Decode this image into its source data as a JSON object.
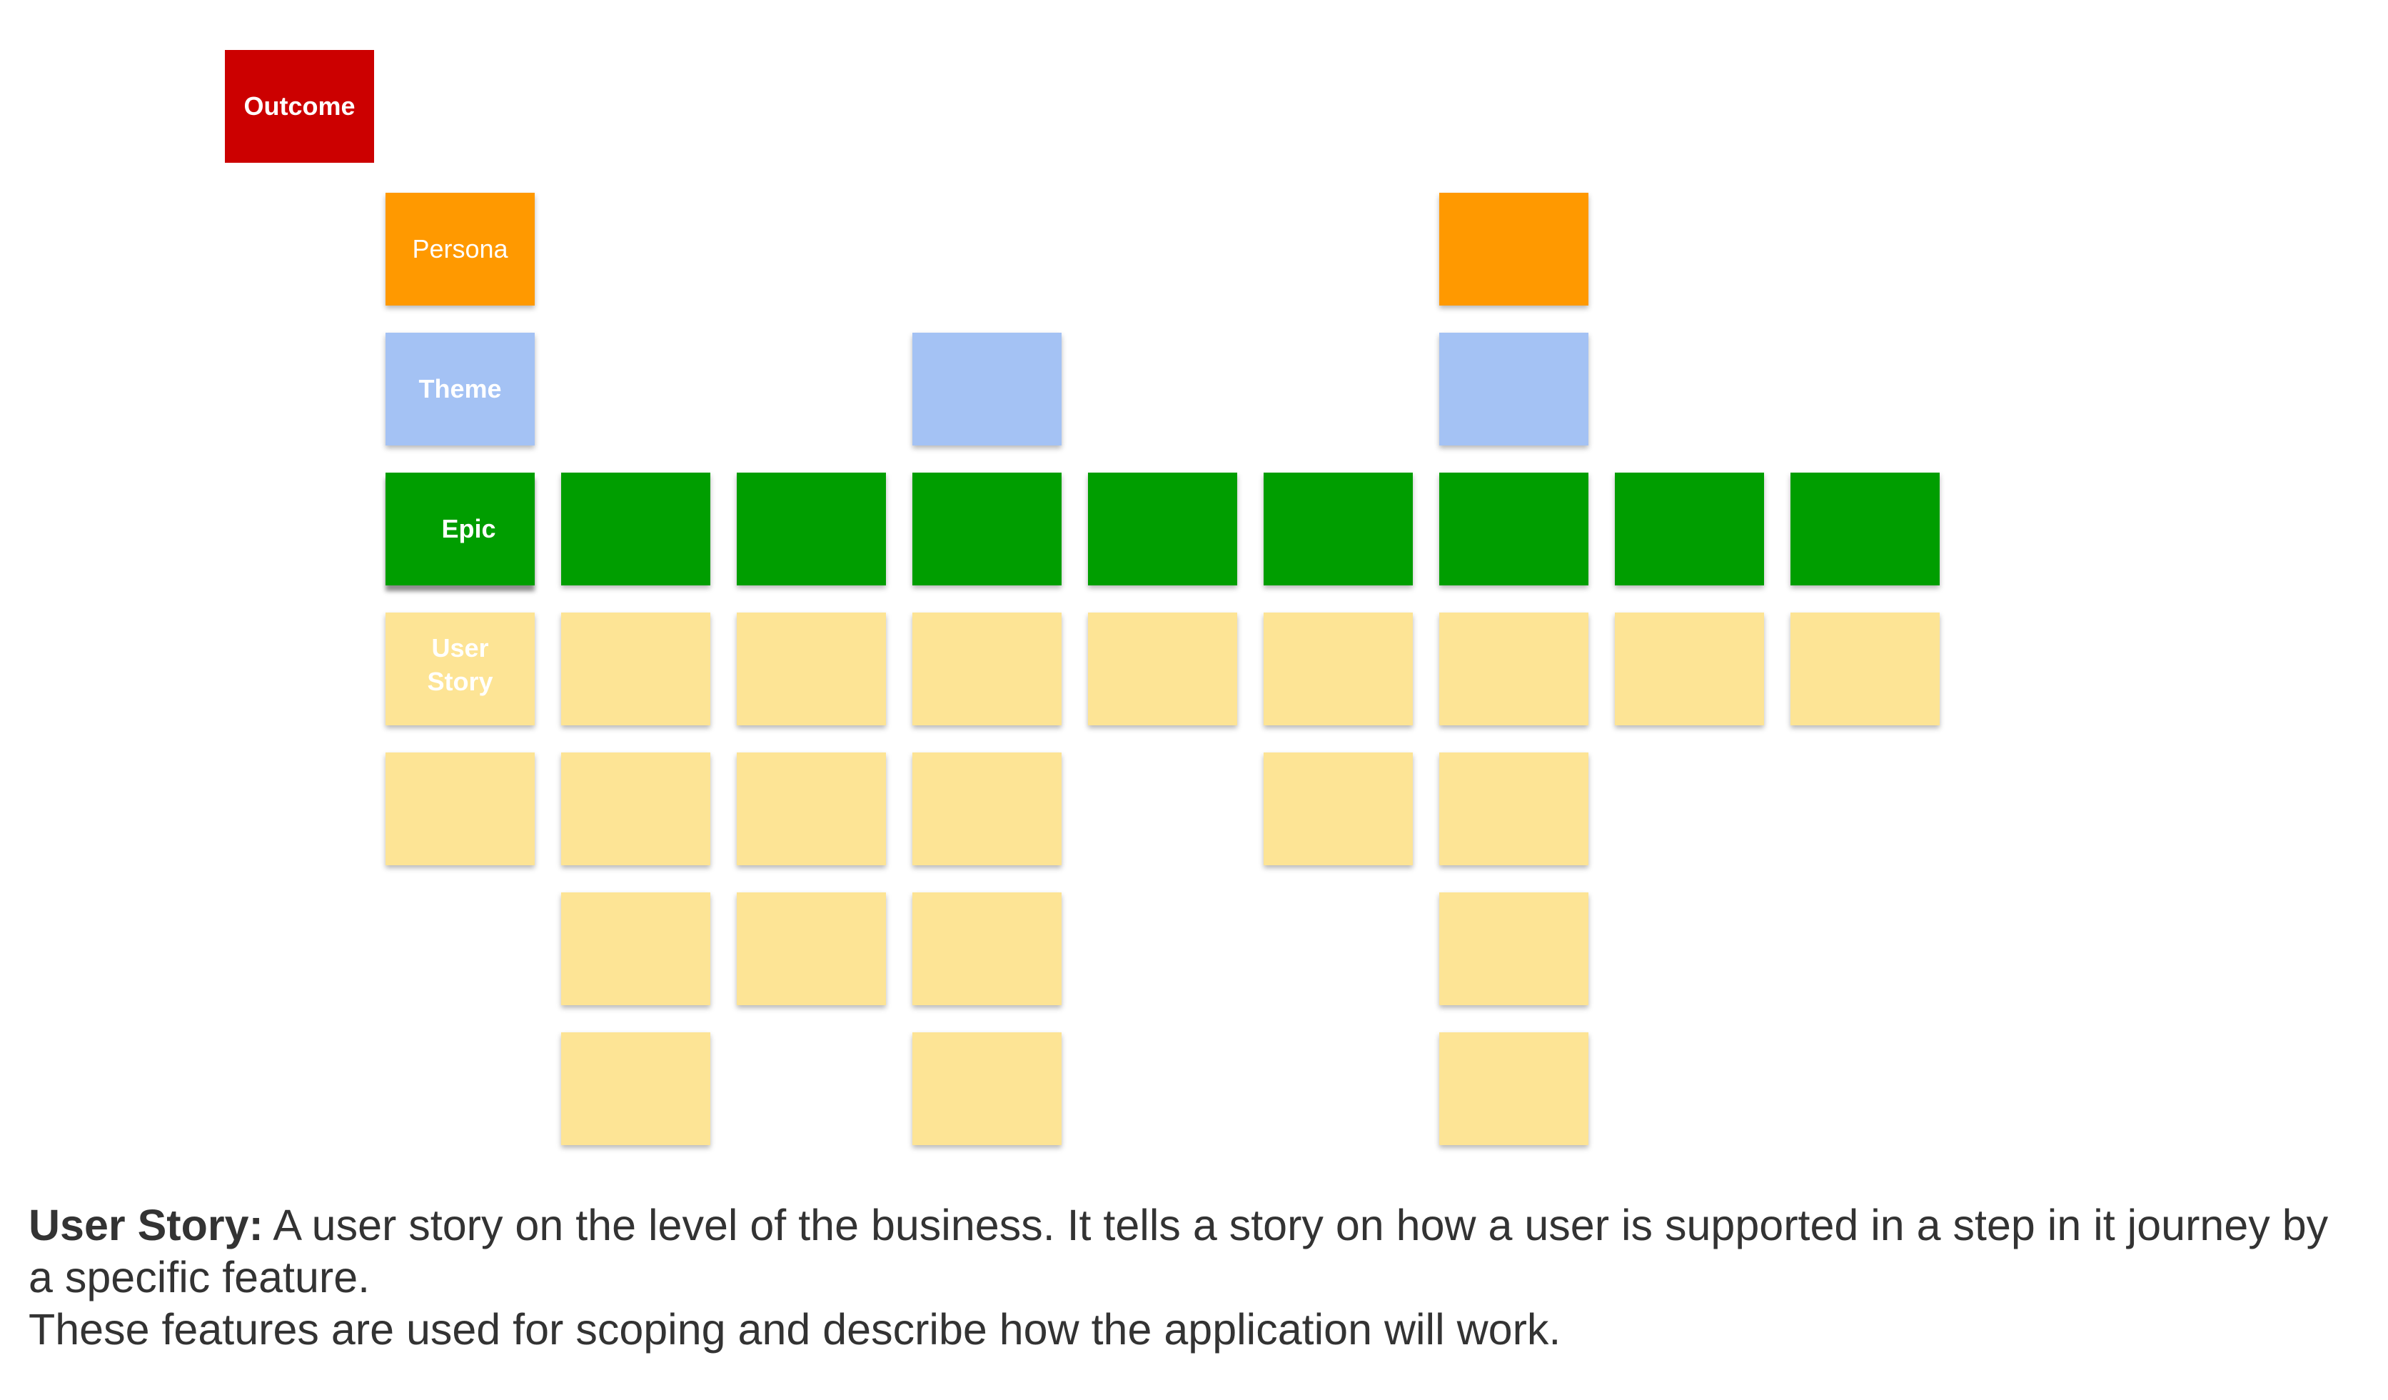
{
  "colors": {
    "outcome": "#cc0000",
    "persona": "#ff9900",
    "theme": "#a4c2f4",
    "epic": "#009e00",
    "story": "#fde495",
    "label_text": "#ffffff",
    "caption_text": "#333333"
  },
  "rows": {
    "outcome": {
      "label": "Outcome"
    },
    "persona": {
      "label": "Persona"
    },
    "theme": {
      "label": "Theme"
    },
    "epic": {
      "label": "Epic"
    },
    "user_story": {
      "label": "User\n Story"
    }
  },
  "columns_present": {
    "outcome": [
      0
    ],
    "persona": [
      1,
      7
    ],
    "theme": [
      1,
      4,
      7
    ],
    "epic": [
      1,
      2,
      3,
      4,
      5,
      6,
      7,
      8,
      9
    ],
    "story_1": [
      1,
      2,
      3,
      4,
      5,
      6,
      7,
      8,
      9
    ],
    "story_2": [
      1,
      2,
      3,
      4,
      6,
      7
    ],
    "story_3": [
      2,
      3,
      4,
      7
    ],
    "story_4": [
      2,
      4,
      7
    ]
  },
  "caption": {
    "term": "User Story:",
    "definition": " A user story on the level of the business. It tells a story on how a user is supported in a step in it journey by a specific feature.",
    "note": "These features are used for scoping and describe how the application will work."
  }
}
